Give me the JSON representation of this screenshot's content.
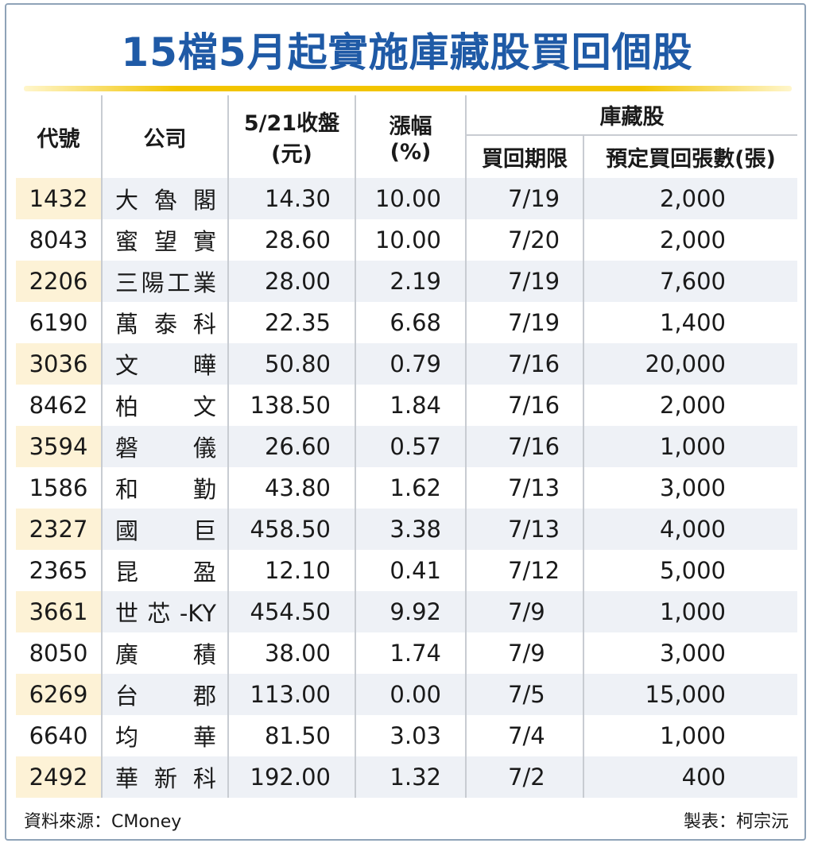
{
  "title": "15檔5月起實施庫藏股買回個股",
  "headers": {
    "code": "代號",
    "company": "公司",
    "close_line1": "5/21收盤",
    "close_line2": "(元)",
    "change_line1": "漲幅",
    "change_line2": "(%)",
    "group": "庫藏股",
    "deadline": "買回期限",
    "shares": "預定買回張數(張)"
  },
  "rows": [
    {
      "code": "1432",
      "company": "大魯閣",
      "close": "14.30",
      "change": "10.00",
      "deadline": "7/19",
      "shares": "2,000"
    },
    {
      "code": "8043",
      "company": "蜜望實",
      "close": "28.60",
      "change": "10.00",
      "deadline": "7/20",
      "shares": "2,000"
    },
    {
      "code": "2206",
      "company": "三陽工業",
      "close": "28.00",
      "change": "2.19",
      "deadline": "7/19",
      "shares": "7,600"
    },
    {
      "code": "6190",
      "company": "萬泰科",
      "close": "22.35",
      "change": "6.68",
      "deadline": "7/19",
      "shares": "1,400"
    },
    {
      "code": "3036",
      "company": "文曄",
      "close": "50.80",
      "change": "0.79",
      "deadline": "7/16",
      "shares": "20,000"
    },
    {
      "code": "8462",
      "company": "柏文",
      "close": "138.50",
      "change": "1.84",
      "deadline": "7/16",
      "shares": "2,000"
    },
    {
      "code": "3594",
      "company": "磐儀",
      "close": "26.60",
      "change": "0.57",
      "deadline": "7/16",
      "shares": "1,000"
    },
    {
      "code": "1586",
      "company": "和勤",
      "close": "43.80",
      "change": "1.62",
      "deadline": "7/13",
      "shares": "3,000"
    },
    {
      "code": "2327",
      "company": "國巨",
      "close": "458.50",
      "change": "3.38",
      "deadline": "7/13",
      "shares": "4,000"
    },
    {
      "code": "2365",
      "company": "昆盈",
      "close": "12.10",
      "change": "0.41",
      "deadline": "7/12",
      "shares": "5,000"
    },
    {
      "code": "3661",
      "company": "世芯-KY",
      "close": "454.50",
      "change": "9.92",
      "deadline": "7/9",
      "shares": "1,000"
    },
    {
      "code": "8050",
      "company": "廣積",
      "close": "38.00",
      "change": "1.74",
      "deadline": "7/9",
      "shares": "3,000"
    },
    {
      "code": "6269",
      "company": "台郡",
      "close": "113.00",
      "change": "0.00",
      "deadline": "7/5",
      "shares": "15,000"
    },
    {
      "code": "6640",
      "company": "均華",
      "close": "81.50",
      "change": "3.03",
      "deadline": "7/4",
      "shares": "1,000"
    },
    {
      "code": "2492",
      "company": "華新科",
      "close": "192.00",
      "change": "1.32",
      "deadline": "7/2",
      "shares": "400"
    }
  ],
  "footer": {
    "source": "資料來源：CMoney",
    "maker": "製表：柯宗沅"
  },
  "colors": {
    "title": "#1f5aa6",
    "rule": "#f2c400",
    "row_highlight": "#fdf2d6",
    "row_alt": "#eef1f6"
  }
}
